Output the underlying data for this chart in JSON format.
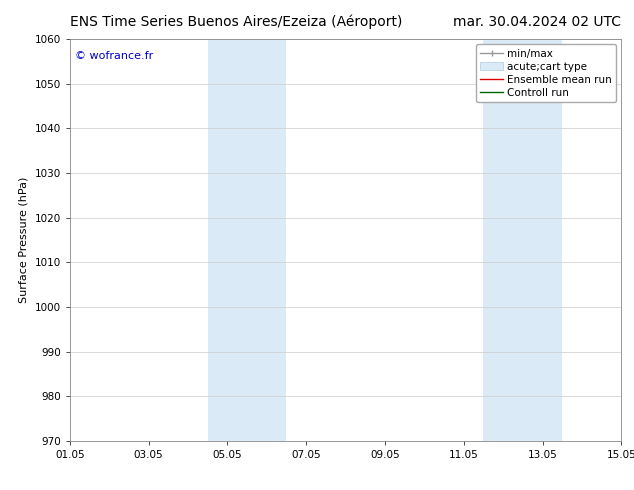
{
  "title_left": "ENS Time Series Buenos Aires/Ezeiza (Aéroport)",
  "title_right": "mar. 30.04.2024 02 UTC",
  "ylabel": "Surface Pressure (hPa)",
  "ylim": [
    970,
    1060
  ],
  "yticks": [
    970,
    980,
    990,
    1000,
    1010,
    1020,
    1030,
    1040,
    1050,
    1060
  ],
  "xtick_labels": [
    "01.05",
    "03.05",
    "05.05",
    "07.05",
    "09.05",
    "11.05",
    "13.05",
    "15.05"
  ],
  "xtick_positions": [
    0,
    2,
    4,
    6,
    8,
    10,
    12,
    14
  ],
  "xlim": [
    0,
    14
  ],
  "shaded_regions": [
    {
      "x_start": 3.5,
      "x_end": 5.5,
      "color": "#daeaf7"
    },
    {
      "x_start": 10.5,
      "x_end": 12.5,
      "color": "#daeaf7"
    }
  ],
  "watermark_text": "© wofrance.fr",
  "watermark_color": "#0000cc",
  "background_color": "#ffffff",
  "plot_bg_color": "#ffffff",
  "grid_color": "#cccccc",
  "legend_items": [
    {
      "label": "min/max",
      "color": "#999999",
      "lw": 1.0
    },
    {
      "label": "acute;cart type",
      "color": "#daeaf7",
      "lw": 8
    },
    {
      "label": "Ensemble mean run",
      "color": "#dd0000",
      "lw": 1.0
    },
    {
      "label": "Controll run",
      "color": "#006600",
      "lw": 1.0
    }
  ],
  "title_fontsize": 10,
  "ylabel_fontsize": 8,
  "tick_fontsize": 7.5,
  "legend_fontsize": 7.5,
  "watermark_fontsize": 8
}
